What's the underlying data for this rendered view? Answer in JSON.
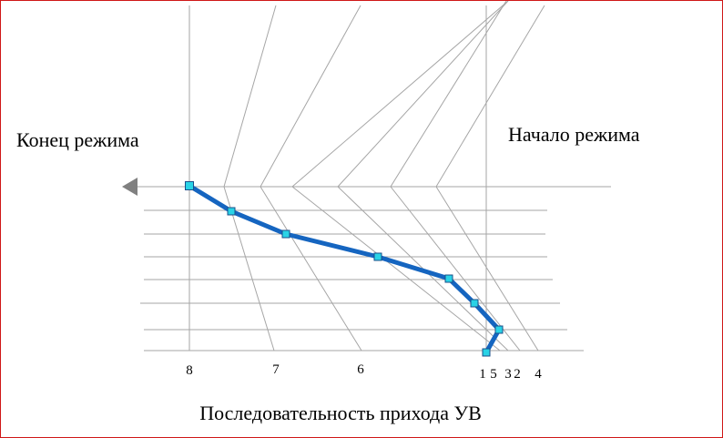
{
  "labels": {
    "end_mode": "Конец режима",
    "start_mode": "Начало режима",
    "axis_title": "Последовательность прихода УВ",
    "tick_8": "8",
    "tick_7": "7",
    "tick_6": "6",
    "tick_1": "1",
    "tick_5": "5",
    "tick_3": "3",
    "tick_2": "2",
    "tick_4": "4"
  },
  "colors": {
    "frame": "#d01818",
    "guide_lines": "#a6a6a6",
    "trace": "#1565c0",
    "markers": "#29d3e6",
    "arrow": "#808080"
  },
  "icons": {
    "direction_arrow": "left-triangle-arrow-icon"
  }
}
